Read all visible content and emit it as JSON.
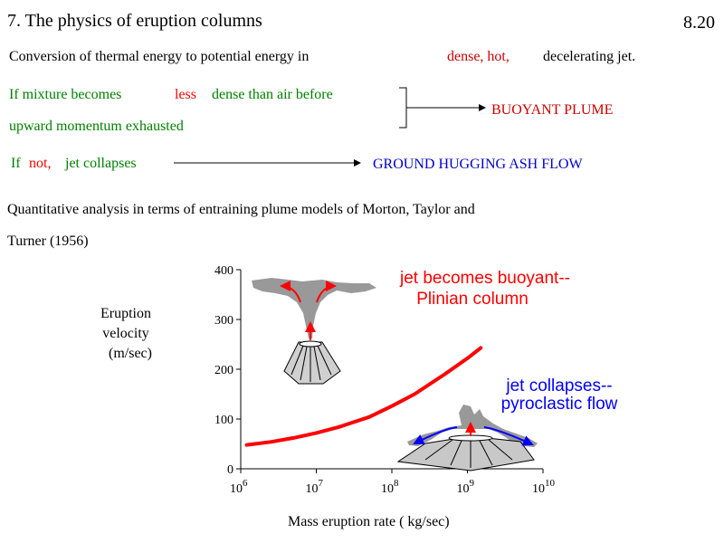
{
  "slide": {
    "title": "7. The physics of eruption columns",
    "page_number": "8.20",
    "line1_a": "Conversion of thermal energy to potential energy in",
    "line1_b": "dense, hot,",
    "line1_c": "decelerating jet.",
    "line2_a": "If mixture becomes",
    "line2_b": "less",
    "line2_c": "dense than air before",
    "line3": "upward momentum exhausted",
    "result1": "BUOYANT PLUME",
    "line4_a": "If",
    "line4_b": "not,",
    "line4_c": "jet collapses",
    "result2": "GROUND HUGGING ASH FLOW",
    "para_line1": "Quantitative analysis in terms of entraining plume models of Morton, Taylor and",
    "para_line2": "Turner (1956)"
  },
  "chart_data": {
    "type": "line",
    "title": "",
    "xlabel": "Mass eruption rate ( kg/sec)",
    "ylabel_lines": [
      "Eruption",
      "velocity",
      "(m/sec)"
    ],
    "x_scale": "log",
    "xlim": [
      1000000,
      10000000000
    ],
    "ylim": [
      0,
      400
    ],
    "x_ticks": [
      {
        "base": "10",
        "exp": "6",
        "value": 1000000
      },
      {
        "base": "10",
        "exp": "7",
        "value": 10000000
      },
      {
        "base": "10",
        "exp": "8",
        "value": 100000000
      },
      {
        "base": "10",
        "exp": "9",
        "value": 1000000000
      },
      {
        "base": "10",
        "exp": "10",
        "value": 10000000000
      }
    ],
    "y_ticks": [
      "0",
      "100",
      "200",
      "300",
      "400"
    ],
    "series": [
      {
        "color": "#ff0000",
        "x": [
          1200000,
          2500000,
          5000000,
          10000000,
          20000000,
          50000000,
          100000000,
          200000000,
          500000000,
          1000000000,
          1500000000
        ],
        "y": [
          48,
          54,
          62,
          72,
          84,
          104,
          126,
          150,
          190,
          222,
          243
        ]
      }
    ],
    "annotations": [
      {
        "id": "buoyant",
        "color": "#ff0000",
        "lines": [
          "jet becomes buoyant--",
          "Plinian column"
        ]
      },
      {
        "id": "collapse",
        "color": "#0000ff",
        "lines": [
          "jet collapses--",
          "pyroclastic flow"
        ]
      }
    ],
    "grid": false,
    "legend": "none",
    "icons": [
      "plinian-column-volcano-icon",
      "collapsing-column-volcano-icon"
    ]
  }
}
